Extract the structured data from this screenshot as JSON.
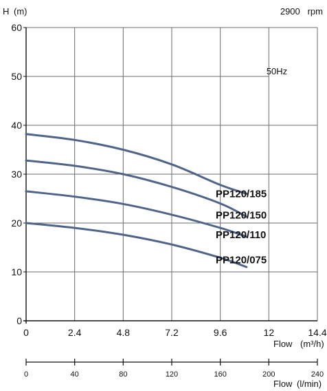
{
  "chart_data": {
    "type": "line",
    "y_axis_label": "H",
    "y_axis_unit": "(m)",
    "speed_label": "2900   rpm",
    "frequency_label": "50Hz",
    "x_axis_label": "Flow",
    "x_axis_unit": "(m³/h)",
    "x_ticks": [
      "0",
      "2.4",
      "4.8",
      "7.2",
      "9.6",
      "12",
      "14.4"
    ],
    "y_ticks": [
      "0",
      "10",
      "20",
      "30",
      "40",
      "50",
      "60"
    ],
    "xlim": [
      0,
      14.4
    ],
    "ylim": [
      0,
      60
    ],
    "grid": true,
    "secondary_x_axis": {
      "label": "Flow",
      "unit": "(l/min)",
      "ticks": [
        "0",
        "40",
        "80",
        "120",
        "160",
        "200",
        "240"
      ],
      "range": [
        0,
        240
      ]
    },
    "series": [
      {
        "name": "PP120/185",
        "color": "#4f6489",
        "x": [
          0,
          2.4,
          4.8,
          7.2,
          9.6,
          10.9
        ],
        "y": [
          38.2,
          37.0,
          35.0,
          32.0,
          27.8,
          26.0
        ]
      },
      {
        "name": "PP120/150",
        "color": "#4f6489",
        "x": [
          0,
          2.4,
          4.8,
          7.2,
          9.6,
          10.9
        ],
        "y": [
          32.8,
          31.7,
          30.0,
          27.4,
          24.0,
          21.3
        ]
      },
      {
        "name": "PP120/110",
        "color": "#4f6489",
        "x": [
          0,
          2.4,
          4.8,
          7.2,
          9.6,
          10.9
        ],
        "y": [
          26.5,
          25.4,
          23.9,
          21.7,
          19.0,
          17.2
        ]
      },
      {
        "name": "PP120/075",
        "color": "#4f6489",
        "x": [
          0,
          2.4,
          4.8,
          7.2,
          9.6,
          10.9
        ],
        "y": [
          20.0,
          19.0,
          17.6,
          15.6,
          12.9,
          11.0
        ]
      }
    ]
  }
}
